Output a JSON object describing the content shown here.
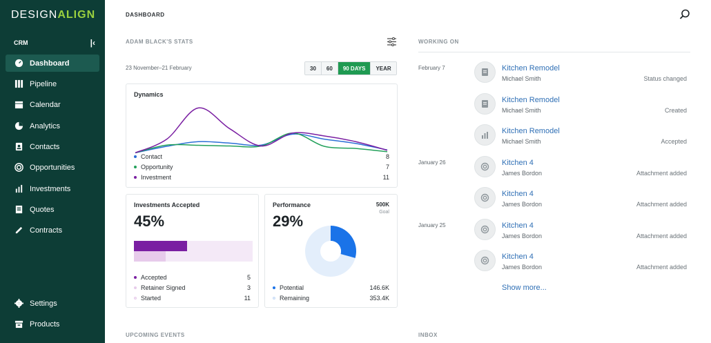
{
  "app": {
    "logo_left": "DESIGN",
    "logo_right": "ALIGN",
    "section": "CRM"
  },
  "sidebar": {
    "items": [
      {
        "label": "Dashboard",
        "icon": "dashboard-icon",
        "active": true
      },
      {
        "label": "Pipeline",
        "icon": "pipeline-icon"
      },
      {
        "label": "Calendar",
        "icon": "calendar-icon"
      },
      {
        "label": "Analytics",
        "icon": "analytics-icon"
      },
      {
        "label": "Contacts",
        "icon": "contacts-icon"
      },
      {
        "label": "Opportunities",
        "icon": "opportunities-icon"
      },
      {
        "label": "Investments",
        "icon": "investments-icon"
      },
      {
        "label": "Quotes",
        "icon": "quotes-icon"
      },
      {
        "label": "Contracts",
        "icon": "contracts-icon"
      }
    ],
    "bottom_items": [
      {
        "label": "Settings",
        "icon": "settings-icon"
      },
      {
        "label": "Products",
        "icon": "products-icon"
      }
    ]
  },
  "header": {
    "title": "DASHBOARD"
  },
  "stats": {
    "title": "ADAM BLACK'S STATS",
    "date_range": "23 November–21 February",
    "periods": [
      "30",
      "60",
      "90 DAYS",
      "YEAR"
    ],
    "active_period": "90 DAYS"
  },
  "dynamics": {
    "title": "Dynamics",
    "legend": [
      {
        "label": "Contact",
        "value": "8",
        "color": "#2b6fd6"
      },
      {
        "label": "Opportunity",
        "value": "7",
        "color": "#22a05a"
      },
      {
        "label": "Investment",
        "value": "11",
        "color": "#7a1fa2"
      }
    ]
  },
  "chart_data": {
    "type": "line",
    "x": [
      0,
      1,
      2,
      3,
      4,
      5,
      6,
      7,
      8
    ],
    "series": [
      {
        "name": "Contact",
        "color": "#2b6fd6",
        "values": [
          1,
          4.6,
          7.2,
          6.4,
          5.3,
          11.4,
          8.6,
          6.2,
          2.6
        ]
      },
      {
        "name": "Opportunity",
        "color": "#22a05a",
        "values": [
          1,
          5.3,
          5.2,
          4.8,
          4.8,
          12.0,
          4.6,
          3.4,
          1.6
        ]
      },
      {
        "name": "Investment",
        "color": "#7a1fa2",
        "values": [
          1,
          8.6,
          26.0,
          14.4,
          4.8,
          12.0,
          10.4,
          7.2,
          2.4
        ]
      }
    ],
    "ylim": [
      0,
      30
    ]
  },
  "investments_accepted": {
    "title": "Investments Accepted",
    "percent": "45%",
    "legend": [
      {
        "label": "Accepted",
        "value": "5",
        "color": "#7a1fa2"
      },
      {
        "label": "Retainer Signed",
        "value": "3",
        "color": "#e7cbeb"
      },
      {
        "label": "Started",
        "value": "11",
        "color": "#f3e8f6"
      }
    ],
    "bar_fractions": {
      "accepted": 0.45,
      "retainer": 0.27
    }
  },
  "performance": {
    "title": "Performance",
    "percent": "29%",
    "goal_value": "500K",
    "goal_label": "Goal",
    "legend": [
      {
        "label": "Potential",
        "value": "146.6K",
        "color": "#1a73e8"
      },
      {
        "label": "Remaining",
        "value": "353.4K",
        "color": "#e3eefb"
      }
    ],
    "donut_fraction": 0.293
  },
  "working_on": {
    "title": "WORKING ON",
    "items": [
      {
        "date": "February 7",
        "title": "Kitchen Remodel",
        "person": "Michael Smith",
        "status": "Status changed",
        "icon": "document-icon"
      },
      {
        "date": "",
        "title": "Kitchen Remodel",
        "person": "Michael Smith",
        "status": "Created",
        "icon": "document-icon"
      },
      {
        "date": "",
        "title": "Kitchen Remodel",
        "person": "Michael Smith",
        "status": "Accepted",
        "icon": "chart-icon"
      },
      {
        "date": "January 26",
        "title": "Kitchen 4",
        "person": "James Bordon",
        "status": "Attachment added",
        "icon": "attachment-icon"
      },
      {
        "date": "",
        "title": "Kitchen 4",
        "person": "James Bordon",
        "status": "Attachment added",
        "icon": "attachment-icon"
      },
      {
        "date": "January 25",
        "title": "Kitchen 4",
        "person": "James Bordon",
        "status": "Attachment added",
        "icon": "attachment-icon"
      },
      {
        "date": "",
        "title": "Kitchen 4",
        "person": "James Bordon",
        "status": "Attachment added",
        "icon": "attachment-icon"
      }
    ],
    "show_more": "Show more..."
  },
  "upcoming": {
    "title": "UPCOMING EVENTS"
  },
  "inbox": {
    "title": "INBOX"
  }
}
